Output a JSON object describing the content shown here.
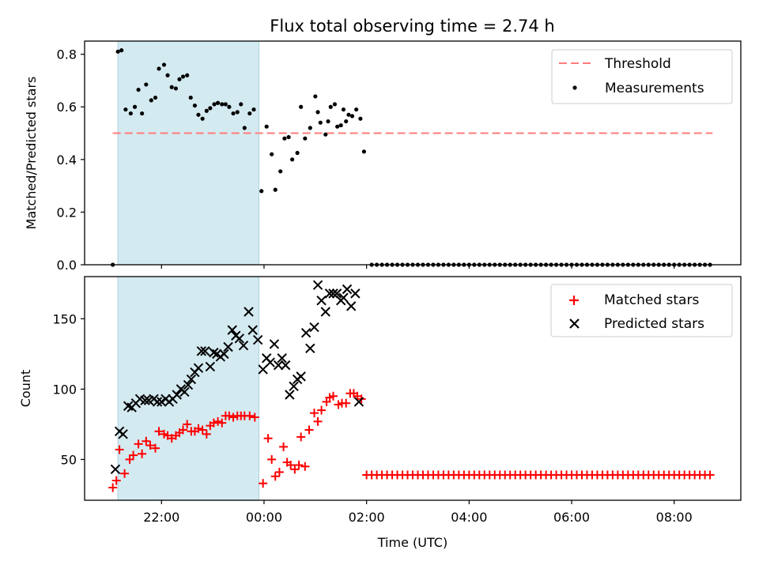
{
  "chart_data": [
    {
      "type": "scatter",
      "title": "Flux total observing time = 2.74 h",
      "xlabel": "",
      "ylabel": "Matched/Predicted stars",
      "x_unit": "hours relative to 00:00 UTC",
      "xlim": [
        -3.5,
        9.3
      ],
      "ylim": [
        0,
        0.85
      ],
      "yticks": [
        "0.0",
        "0.2",
        "0.4",
        "0.6",
        "0.8"
      ],
      "yticks_values": [
        0,
        0.2,
        0.4,
        0.6,
        0.8
      ],
      "xticks_values": [
        -2,
        0,
        2,
        4,
        6,
        8
      ],
      "shaded_span": {
        "start": -2.85,
        "end": -0.1,
        "color": "#d4eaf1"
      },
      "threshold": {
        "name": "Threshold",
        "y": 0.5,
        "x_start": -2.95,
        "x_end": 8.75,
        "color": "#ff7b7b"
      },
      "legend": {
        "position": "upper-right",
        "entries": [
          "Threshold",
          "Measurements"
        ]
      },
      "series": [
        {
          "name": "Measurements",
          "color": "#000000",
          "points": [
            [
              -2.95,
              0.0
            ],
            [
              -2.85,
              0.81
            ],
            [
              -2.78,
              0.815
            ],
            [
              -2.7,
              0.59
            ],
            [
              -2.6,
              0.575
            ],
            [
              -2.52,
              0.6
            ],
            [
              -2.45,
              0.665
            ],
            [
              -2.38,
              0.575
            ],
            [
              -2.3,
              0.685
            ],
            [
              -2.2,
              0.625
            ],
            [
              -2.12,
              0.635
            ],
            [
              -2.05,
              0.745
            ],
            [
              -1.95,
              0.76
            ],
            [
              -1.88,
              0.72
            ],
            [
              -1.8,
              0.675
            ],
            [
              -1.72,
              0.67
            ],
            [
              -1.65,
              0.705
            ],
            [
              -1.58,
              0.715
            ],
            [
              -1.5,
              0.72
            ],
            [
              -1.43,
              0.635
            ],
            [
              -1.35,
              0.605
            ],
            [
              -1.28,
              0.57
            ],
            [
              -1.2,
              0.555
            ],
            [
              -1.12,
              0.585
            ],
            [
              -1.05,
              0.595
            ],
            [
              -0.97,
              0.61
            ],
            [
              -0.9,
              0.615
            ],
            [
              -0.82,
              0.61
            ],
            [
              -0.75,
              0.61
            ],
            [
              -0.68,
              0.6
            ],
            [
              -0.6,
              0.575
            ],
            [
              -0.52,
              0.58
            ],
            [
              -0.45,
              0.61
            ],
            [
              -0.38,
              0.52
            ],
            [
              -0.28,
              0.575
            ],
            [
              -0.2,
              0.59
            ],
            [
              -0.05,
              0.28
            ],
            [
              0.05,
              0.525
            ],
            [
              0.15,
              0.42
            ],
            [
              0.22,
              0.285
            ],
            [
              0.32,
              0.355
            ],
            [
              0.4,
              0.48
            ],
            [
              0.48,
              0.485
            ],
            [
              0.55,
              0.4
            ],
            [
              0.65,
              0.425
            ],
            [
              0.72,
              0.6
            ],
            [
              0.8,
              0.48
            ],
            [
              0.9,
              0.52
            ],
            [
              1.0,
              0.64
            ],
            [
              1.05,
              0.58
            ],
            [
              1.1,
              0.54
            ],
            [
              1.2,
              0.495
            ],
            [
              1.25,
              0.545
            ],
            [
              1.3,
              0.6
            ],
            [
              1.38,
              0.61
            ],
            [
              1.43,
              0.525
            ],
            [
              1.5,
              0.53
            ],
            [
              1.55,
              0.59
            ],
            [
              1.6,
              0.545
            ],
            [
              1.65,
              0.57
            ],
            [
              1.72,
              0.565
            ],
            [
              1.8,
              0.59
            ],
            [
              1.88,
              0.555
            ],
            [
              1.95,
              0.43
            ]
          ],
          "zeros_from": 2.1,
          "zeros_to": 8.75,
          "zeros_step": 0.1
        }
      ]
    },
    {
      "type": "scatter",
      "title": "",
      "xlabel": "Time (UTC)",
      "ylabel": "Count",
      "x_unit": "hours relative to 00:00 UTC",
      "xlim": [
        -3.5,
        9.3
      ],
      "ylim": [
        21,
        180
      ],
      "yticks": [
        "50",
        "100",
        "150"
      ],
      "yticks_values": [
        50,
        100,
        150
      ],
      "xticks": [
        "22:00",
        "00:00",
        "02:00",
        "04:00",
        "06:00",
        "08:00"
      ],
      "xticks_values": [
        -2,
        0,
        2,
        4,
        6,
        8
      ],
      "shaded_span": {
        "start": -2.85,
        "end": -0.1,
        "color": "#d4eaf1"
      },
      "legend": {
        "position": "upper-right",
        "entries": [
          "Matched stars",
          "Predicted stars"
        ]
      },
      "series": [
        {
          "name": "Matched stars",
          "marker": "+",
          "color": "#ff0000",
          "points": [
            [
              -2.95,
              30
            ],
            [
              -2.88,
              35
            ],
            [
              -2.82,
              57
            ],
            [
              -2.72,
              40
            ],
            [
              -2.62,
              50
            ],
            [
              -2.55,
              53
            ],
            [
              -2.45,
              61
            ],
            [
              -2.38,
              54
            ],
            [
              -2.3,
              63
            ],
            [
              -2.22,
              60
            ],
            [
              -2.12,
              58
            ],
            [
              -2.05,
              70
            ],
            [
              -1.95,
              68
            ],
            [
              -1.88,
              67
            ],
            [
              -1.8,
              65
            ],
            [
              -1.72,
              67
            ],
            [
              -1.65,
              69
            ],
            [
              -1.58,
              71
            ],
            [
              -1.5,
              75
            ],
            [
              -1.42,
              70
            ],
            [
              -1.35,
              70
            ],
            [
              -1.28,
              72
            ],
            [
              -1.2,
              71
            ],
            [
              -1.12,
              68
            ],
            [
              -1.05,
              74
            ],
            [
              -0.98,
              76
            ],
            [
              -0.9,
              77
            ],
            [
              -0.82,
              76
            ],
            [
              -0.75,
              81
            ],
            [
              -0.68,
              81
            ],
            [
              -0.6,
              80
            ],
            [
              -0.52,
              81
            ],
            [
              -0.45,
              81
            ],
            [
              -0.38,
              81
            ],
            [
              -0.28,
              81
            ],
            [
              -0.18,
              80
            ],
            [
              -0.02,
              33
            ],
            [
              0.08,
              65
            ],
            [
              0.15,
              50
            ],
            [
              0.22,
              38
            ],
            [
              0.3,
              41
            ],
            [
              0.38,
              59
            ],
            [
              0.45,
              48
            ],
            [
              0.52,
              46
            ],
            [
              0.6,
              43
            ],
            [
              0.68,
              46
            ],
            [
              0.72,
              66
            ],
            [
              0.8,
              45
            ],
            [
              0.88,
              71
            ],
            [
              0.98,
              83
            ],
            [
              1.05,
              77
            ],
            [
              1.12,
              85
            ],
            [
              1.22,
              91
            ],
            [
              1.28,
              94
            ],
            [
              1.35,
              95
            ],
            [
              1.45,
              89
            ],
            [
              1.52,
              90
            ],
            [
              1.6,
              90
            ],
            [
              1.68,
              97
            ],
            [
              1.75,
              97
            ],
            [
              1.82,
              95
            ],
            [
              1.9,
              93
            ]
          ],
          "constant_from": 2.0,
          "constant_to": 8.75,
          "constant_step": 0.1,
          "constant_value": 39
        },
        {
          "name": "Predicted stars",
          "marker": "x",
          "color": "#000000",
          "points": [
            [
              -2.9,
              43
            ],
            [
              -2.82,
              70
            ],
            [
              -2.75,
              68
            ],
            [
              -2.65,
              88
            ],
            [
              -2.58,
              87
            ],
            [
              -2.5,
              90
            ],
            [
              -2.42,
              93
            ],
            [
              -2.32,
              92
            ],
            [
              -2.25,
              92
            ],
            [
              -2.15,
              93
            ],
            [
              -2.08,
              91
            ],
            [
              -2.0,
              91
            ],
            [
              -1.92,
              93
            ],
            [
              -1.85,
              91
            ],
            [
              -1.78,
              93
            ],
            [
              -1.7,
              96
            ],
            [
              -1.62,
              100
            ],
            [
              -1.55,
              98
            ],
            [
              -1.48,
              103
            ],
            [
              -1.42,
              107
            ],
            [
              -1.35,
              112
            ],
            [
              -1.28,
              115
            ],
            [
              -1.22,
              127
            ],
            [
              -1.15,
              127
            ],
            [
              -1.05,
              116
            ],
            [
              -0.98,
              126
            ],
            [
              -0.92,
              125
            ],
            [
              -0.85,
              123
            ],
            [
              -0.78,
              125
            ],
            [
              -0.7,
              130
            ],
            [
              -0.62,
              142
            ],
            [
              -0.55,
              138
            ],
            [
              -0.48,
              136
            ],
            [
              -0.4,
              131
            ],
            [
              -0.3,
              155
            ],
            [
              -0.22,
              142
            ],
            [
              -0.12,
              135
            ],
            [
              -0.02,
              114
            ],
            [
              0.05,
              122
            ],
            [
              0.12,
              119
            ],
            [
              0.2,
              132
            ],
            [
              0.28,
              117
            ],
            [
              0.35,
              122
            ],
            [
              0.42,
              117
            ],
            [
              0.5,
              96
            ],
            [
              0.58,
              102
            ],
            [
              0.65,
              107
            ],
            [
              0.72,
              109
            ],
            [
              0.82,
              140
            ],
            [
              0.9,
              129
            ],
            [
              0.98,
              144
            ],
            [
              1.05,
              174
            ],
            [
              1.12,
              163
            ],
            [
              1.2,
              155
            ],
            [
              1.28,
              168
            ],
            [
              1.35,
              168
            ],
            [
              1.42,
              168
            ],
            [
              1.5,
              163
            ],
            [
              1.55,
              165
            ],
            [
              1.62,
              171
            ],
            [
              1.7,
              159
            ],
            [
              1.78,
              168
            ],
            [
              1.85,
              91
            ]
          ]
        }
      ]
    }
  ]
}
